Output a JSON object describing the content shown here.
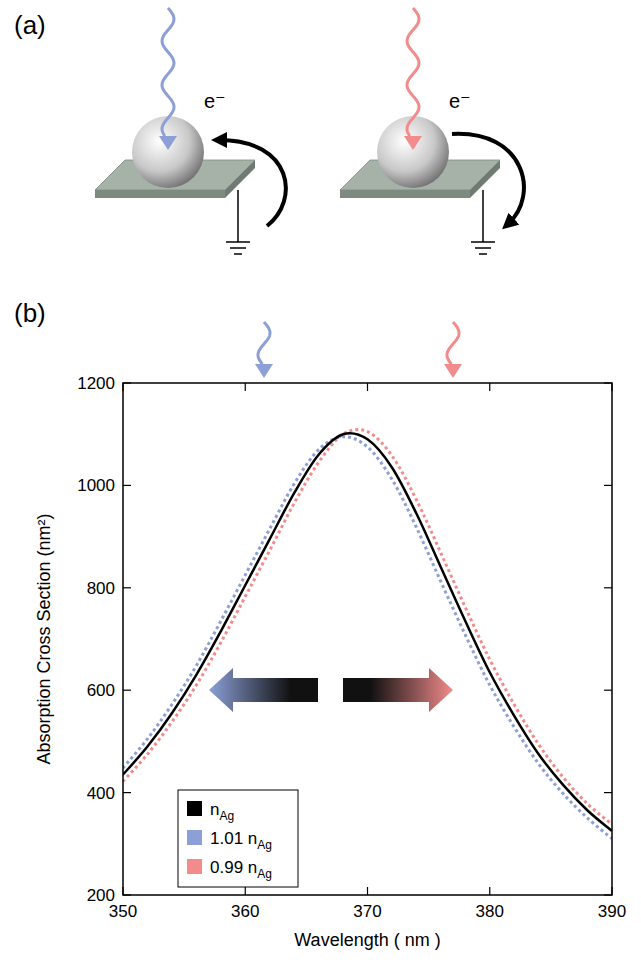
{
  "panel_labels": [
    "(a)",
    "(b)"
  ],
  "diagram": {
    "electron_labels": [
      "e⁻",
      "e⁻"
    ]
  },
  "chart_data": {
    "type": "line",
    "x_label": "Wavelength ( nm )",
    "y_label": "Absorption Cross Section (nm²)",
    "x": [
      350,
      352,
      354,
      356,
      358,
      360,
      362,
      364,
      366,
      368,
      370,
      372,
      374,
      376,
      378,
      380,
      382,
      384,
      386,
      388,
      390
    ],
    "series": [
      {
        "name": "nAg",
        "color": "#000000",
        "line_style": "solid",
        "values": [
          435,
          490,
          555,
          630,
          715,
          805,
          895,
          985,
          1060,
          1100,
          1090,
          1035,
          945,
          840,
          735,
          635,
          550,
          475,
          415,
          365,
          325
        ]
      },
      {
        "name": "1.01 nAg",
        "color": "#8c9fd6",
        "line_style": "dashed",
        "values": [
          448,
          505,
          572,
          648,
          735,
          825,
          915,
          1003,
          1070,
          1095,
          1075,
          1012,
          918,
          812,
          708,
          610,
          528,
          456,
          398,
          350,
          310
        ]
      },
      {
        "name": "0.99 nAg",
        "color": "#f28b8b",
        "line_style": "dashed",
        "values": [
          422,
          475,
          538,
          610,
          693,
          783,
          873,
          965,
          1045,
          1100,
          1105,
          1058,
          972,
          868,
          762,
          660,
          572,
          494,
          430,
          378,
          338
        ]
      }
    ],
    "xlim": [
      350,
      390
    ],
    "ylim": [
      200,
      1200
    ],
    "xticks": [
      350,
      360,
      370,
      380,
      390
    ],
    "yticks": [
      200,
      400,
      600,
      800,
      1000,
      1200
    ],
    "legend": "lower left",
    "grid": false
  }
}
